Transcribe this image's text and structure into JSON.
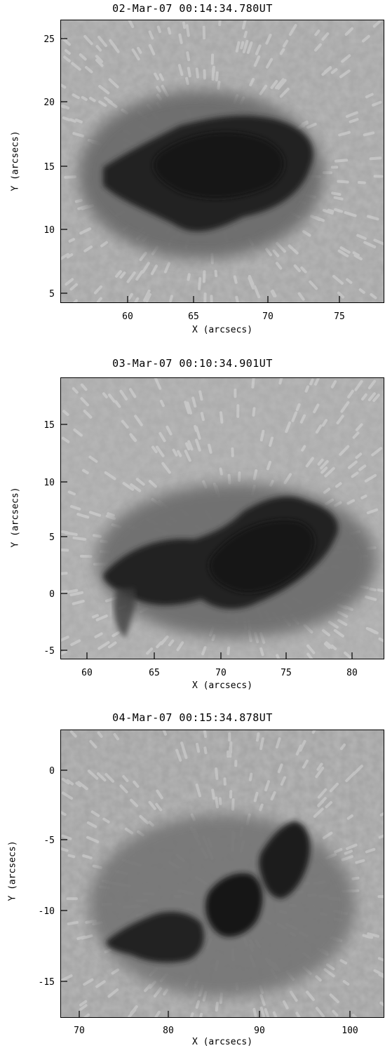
{
  "panels": [
    {
      "title": "02-Mar-07 00:14:34.780UT",
      "xlabel": "X (arcsecs)",
      "ylabel": "Y (arcsecs)",
      "xticks": [
        "60",
        "65",
        "70",
        "75"
      ],
      "yticks": [
        "25",
        "20",
        "15",
        "10",
        "5"
      ],
      "umbra": "large-central"
    },
    {
      "title": "03-Mar-07 00:10:34.901UT",
      "xlabel": "X (arcsecs)",
      "ylabel": "Y (arcsecs)",
      "xticks": [
        "60",
        "65",
        "70",
        "75",
        "80"
      ],
      "yticks": [
        "15",
        "10",
        "5",
        "0",
        "-5"
      ],
      "umbra": "elongated"
    },
    {
      "title": "04-Mar-07 00:15:34.878UT",
      "xlabel": "X (arcsecs)",
      "ylabel": "Y (arcsecs)",
      "xticks": [
        "70",
        "80",
        "90",
        "100"
      ],
      "yticks": [
        "0",
        "-5",
        "-10",
        "-15"
      ],
      "umbra": "fragmented"
    }
  ],
  "colors": {
    "background": "#ffffff",
    "photosphere": "#a8a8a8",
    "penumbra": "#6a6a6a",
    "umbra": "#1a1a1a"
  }
}
